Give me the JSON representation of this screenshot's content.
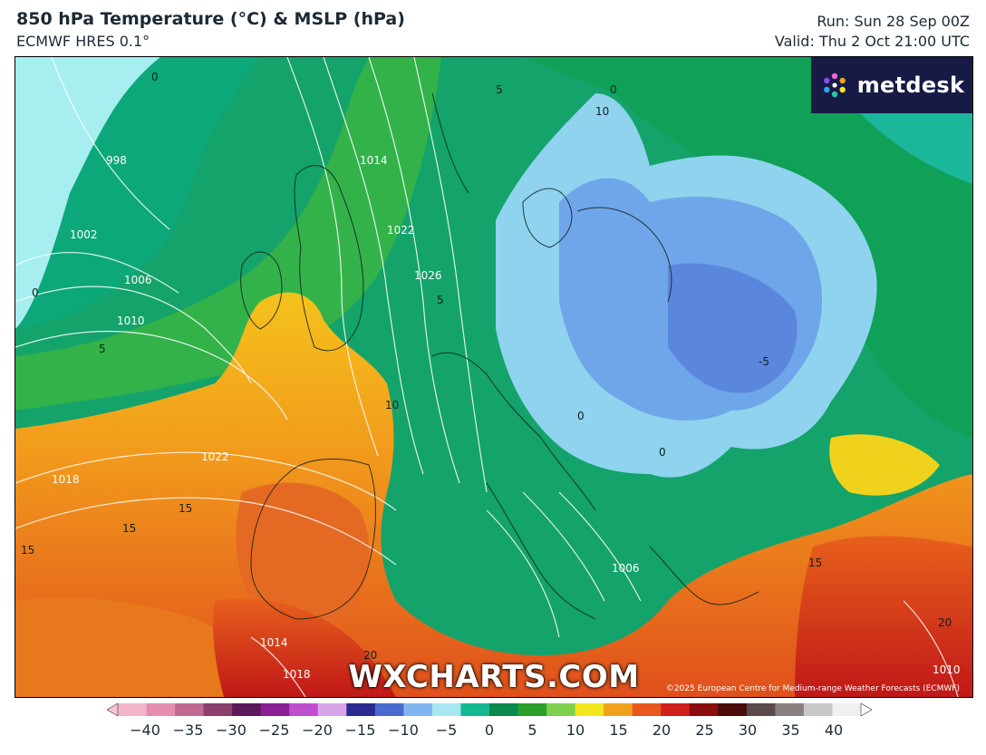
{
  "header": {
    "title": "850 hPa Temperature (°C) & MSLP (hPa)",
    "subtitle": "ECMWF HRES 0.1°",
    "run": "Run: Sun 28 Sep 00Z",
    "valid": "Valid: Thu 2 Oct 21:00 UTC"
  },
  "logo": {
    "text": "metdesk",
    "icon": "metdesk-pinwheel-icon"
  },
  "watermark": "WXCHARTS.COM",
  "copyright": "©2025 European Centre for Medium-range Weather Forecasts (ECMWF)",
  "isobar_labels": [
    "998",
    "1002",
    "1006",
    "1010",
    "1014",
    "1022",
    "1026",
    "1022",
    "1018",
    "1006",
    "1014",
    "1018",
    "1010"
  ],
  "temperature_labels": [
    "0",
    "0",
    "5",
    "5",
    "5",
    "10",
    "15",
    "15",
    "15",
    "15",
    "20",
    "20",
    "0",
    "-5",
    "10",
    "0",
    "0"
  ],
  "colorbar": {
    "ticks": [
      "−40",
      "−35",
      "−30",
      "−25",
      "−20",
      "−15",
      "−10",
      "−5",
      "0",
      "5",
      "10",
      "15",
      "20",
      "25",
      "30",
      "35",
      "40"
    ],
    "unit": "°C",
    "colors": [
      "#f2b5c9",
      "#e58eb0",
      "#c06a92",
      "#8a3f6c",
      "#5b1b5b",
      "#8a1f96",
      "#c04fd0",
      "#d8a6e8",
      "#2b2b8f",
      "#4a6ad0",
      "#7fb6f0",
      "#a6e7f0",
      "#14b890",
      "#0a8a4a",
      "#2ca02c",
      "#7cd04c",
      "#f2e61c",
      "#f2a11c",
      "#e8581c",
      "#d0201c",
      "#8a0e0e",
      "#4a0a0a",
      "#5a4a4a",
      "#8a8080",
      "#c8c8c8",
      "#f0f0f0"
    ]
  }
}
